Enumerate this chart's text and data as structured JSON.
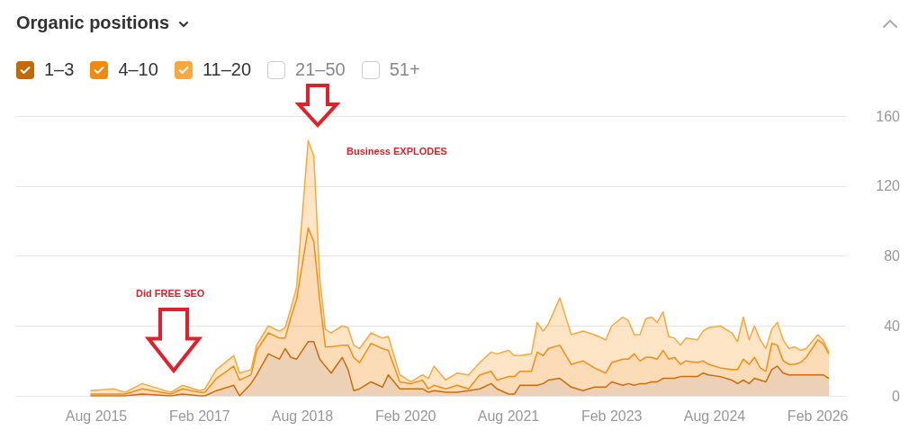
{
  "chart_data": {
    "type": "area",
    "title": "Organic positions",
    "stacked": true,
    "annotations": [
      "Business EXPLODES",
      "Did FREE SEO"
    ],
    "x": [
      "2015-07",
      "2015-11",
      "2016-01",
      "2016-04",
      "2016-09",
      "2016-11",
      "2017-02",
      "2017-03",
      "2017-05",
      "2017-08",
      "2017-09",
      "2017-11",
      "2017-12",
      "2018-02",
      "2018-04",
      "2018-05",
      "2018-06",
      "2018-07",
      "2018-09",
      "2018-10",
      "2018-11",
      "2018-12",
      "2019-01",
      "2019-03",
      "2019-04",
      "2019-05",
      "2019-06",
      "2019-08",
      "2019-10",
      "2019-11",
      "2020-01",
      "2020-03",
      "2020-05",
      "2020-06",
      "2020-07",
      "2020-09",
      "2020-11",
      "2021-01",
      "2021-03",
      "2021-05",
      "2021-06",
      "2021-08",
      "2021-09",
      "2021-10",
      "2021-12",
      "2022-01",
      "2022-02",
      "2022-03",
      "2022-05",
      "2022-07",
      "2022-09",
      "2022-11",
      "2023-01",
      "2023-02",
      "2023-04",
      "2023-05",
      "2023-06",
      "2023-07",
      "2023-08",
      "2023-09",
      "2023-10",
      "2023-11",
      "2023-12",
      "2024-01",
      "2024-02",
      "2024-03",
      "2024-05",
      "2024-06",
      "2024-07",
      "2024-09",
      "2024-11",
      "2024-12",
      "2025-01",
      "2025-02",
      "2025-03",
      "2025-04",
      "2025-05",
      "2025-06",
      "2025-07",
      "2025-08",
      "2025-09",
      "2025-10",
      "2025-11",
      "2025-12",
      "2026-02",
      "2026-03",
      "2026-04"
    ],
    "series": [
      {
        "name": "1–3",
        "color": "#c4680c",
        "values": [
          0,
          0,
          0,
          1,
          0,
          1,
          0,
          0,
          3,
          6,
          0,
          7,
          12,
          24,
          21,
          27,
          22,
          21,
          31,
          31,
          21,
          17,
          13,
          22,
          15,
          3,
          4,
          8,
          5,
          12,
          4,
          4,
          4,
          2,
          3,
          2,
          2,
          3,
          4,
          7,
          4,
          1,
          1,
          6,
          6,
          6,
          7,
          9,
          10,
          5,
          3,
          5,
          5,
          8,
          6,
          7,
          6,
          7,
          7,
          8,
          8,
          10,
          10,
          10,
          11,
          11,
          11,
          13,
          12,
          11,
          9,
          7,
          9,
          7,
          10,
          9,
          8,
          15,
          17,
          13,
          12,
          12,
          12,
          12,
          12,
          12,
          10
        ]
      },
      {
        "name": "4–10",
        "color": "#f28a10",
        "values": [
          1,
          1,
          1,
          3,
          1,
          3,
          2,
          2,
          7,
          11,
          9,
          5,
          14,
          12,
          12,
          6,
          23,
          34,
          65,
          57,
          34,
          11,
          15,
          7,
          14,
          19,
          15,
          22,
          22,
          14,
          4,
          3,
          5,
          2,
          3,
          2,
          4,
          1,
          8,
          7,
          5,
          10,
          10,
          8,
          8,
          19,
          16,
          18,
          19,
          13,
          17,
          11,
          8,
          11,
          15,
          14,
          18,
          13,
          15,
          14,
          13,
          16,
          11,
          12,
          7,
          9,
          8,
          7,
          6,
          5,
          6,
          8,
          12,
          11,
          12,
          7,
          6,
          15,
          12,
          7,
          6,
          6,
          7,
          10,
          20,
          18,
          14
        ]
      },
      {
        "name": "11–20",
        "color": "#f9a83e",
        "values": [
          2,
          3,
          1,
          3,
          1,
          2,
          1,
          2,
          5,
          6,
          4,
          3,
          3,
          4,
          4,
          6,
          5,
          7,
          50,
          49,
          13,
          10,
          8,
          11,
          10,
          7,
          8,
          6,
          6,
          8,
          4,
          1,
          3,
          6,
          11,
          5,
          7,
          8,
          7,
          11,
          15,
          15,
          12,
          9,
          10,
          17,
          14,
          14,
          27,
          17,
          17,
          19,
          19,
          21,
          24,
          22,
          11,
          15,
          22,
          23,
          21,
          22,
          13,
          11,
          11,
          13,
          13,
          17,
          21,
          24,
          21,
          16,
          24,
          14,
          18,
          16,
          13,
          8,
          13,
          12,
          9,
          10,
          7,
          5,
          3,
          2,
          1
        ]
      },
      {
        "name": "21–50",
        "values": [
          null,
          null,
          null,
          null,
          null,
          null,
          null,
          null,
          null,
          null,
          null,
          null,
          null,
          null,
          null,
          null,
          null,
          null,
          null,
          null,
          null,
          null,
          null,
          null,
          null,
          null,
          null,
          null,
          null,
          null,
          null,
          null,
          null,
          null,
          null,
          null,
          null,
          null,
          null,
          null,
          null,
          null,
          null,
          null,
          null,
          null,
          null,
          null,
          null,
          null,
          null,
          null,
          null,
          null,
          null,
          null,
          null,
          null,
          null,
          null,
          null,
          null,
          null,
          null,
          null,
          null,
          null,
          null,
          null,
          null,
          null,
          null,
          null,
          null,
          null,
          null,
          null,
          null,
          null,
          null,
          null,
          null,
          null,
          null,
          null,
          null,
          null
        ]
      },
      {
        "name": "51+",
        "values": [
          null,
          null,
          null,
          null,
          null,
          null,
          null,
          null,
          null,
          null,
          null,
          null,
          null,
          null,
          null,
          null,
          null,
          null,
          null,
          null,
          null,
          null,
          null,
          null,
          null,
          null,
          null,
          null,
          null,
          null,
          null,
          null,
          null,
          null,
          null,
          null,
          null,
          null,
          null,
          null,
          null,
          null,
          null,
          null,
          null,
          null,
          null,
          null,
          null,
          null,
          null,
          null,
          null,
          null,
          null,
          null,
          null,
          null,
          null,
          null,
          null,
          null,
          null,
          null,
          null,
          null,
          null,
          null,
          null,
          null,
          null,
          null,
          null,
          null,
          null,
          null,
          null,
          null,
          null,
          null,
          null,
          null,
          null,
          null,
          null,
          null,
          null
        ]
      }
    ],
    "xlim": [
      "2014-06",
      "2026-07"
    ],
    "xticks": [
      {
        "value": "2015-08",
        "label": "Aug 2015"
      },
      {
        "value": "2017-02",
        "label": "Feb 2017"
      },
      {
        "value": "2018-08",
        "label": "Aug 2018"
      },
      {
        "value": "2020-02",
        "label": "Feb 2020"
      },
      {
        "value": "2021-08",
        "label": "Aug 2021"
      },
      {
        "value": "2023-02",
        "label": "Feb 2023"
      },
      {
        "value": "2024-08",
        "label": "Aug 2024"
      },
      {
        "value": "2026-02",
        "label": "Feb 2026"
      }
    ],
    "ylim": [
      0,
      160
    ],
    "yticks": [
      0,
      40,
      80,
      120,
      160
    ],
    "grid": "y",
    "legend": "top left",
    "marker": "none",
    "line_style": "solid"
  }
}
